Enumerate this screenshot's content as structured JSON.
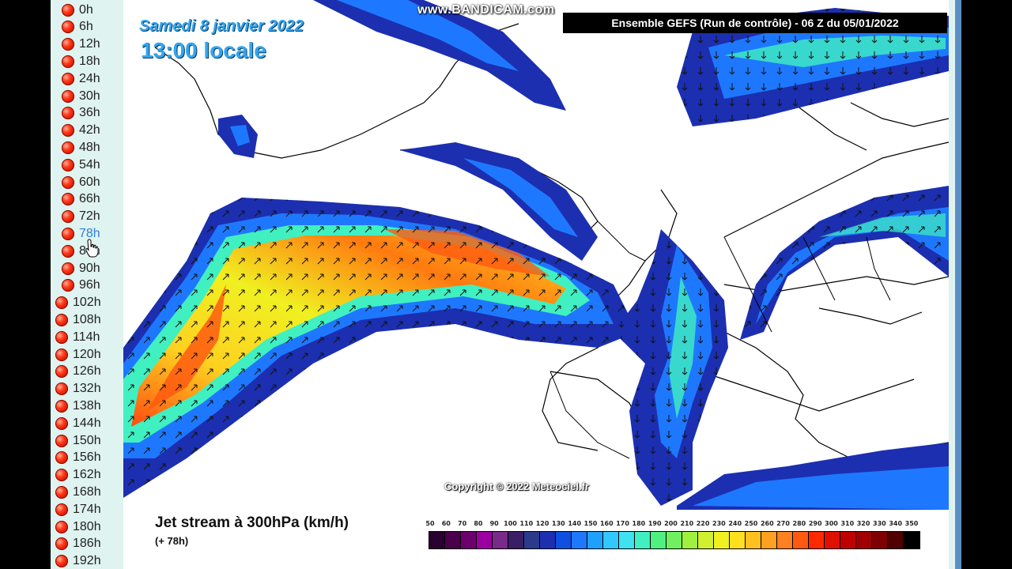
{
  "hours": [
    "0h",
    "6h",
    "12h",
    "18h",
    "24h",
    "30h",
    "36h",
    "42h",
    "48h",
    "54h",
    "60h",
    "66h",
    "72h",
    "78h",
    "84h",
    "90h",
    "96h",
    "102h",
    "108h",
    "114h",
    "120h",
    "126h",
    "132h",
    "138h",
    "144h",
    "150h",
    "156h",
    "162h",
    "168h",
    "174h",
    "180h",
    "186h",
    "192h"
  ],
  "active_hour": "78h",
  "header": {
    "date": "Samedi 8 janvier 2022",
    "time": "13:00 locale",
    "model": "Ensemble GEFS  (Run de contrôle)  -  06 Z du 05/01/2022",
    "watermark": "www.BANDICAM.com"
  },
  "copyright": "Copyright © 2022 Meteociel.fr",
  "footer": {
    "title": "Jet stream à 300hPa (km/h)",
    "subtitle": "(+ 78h)"
  },
  "scale": {
    "labels": [
      "50",
      "60",
      "70",
      "80",
      "90",
      "100",
      "110",
      "120",
      "130",
      "140",
      "150",
      "160",
      "170",
      "180",
      "190",
      "200",
      "210",
      "220",
      "230",
      "240",
      "250",
      "260",
      "270",
      "280",
      "290",
      "300",
      "310",
      "320",
      "330",
      "340",
      "350"
    ],
    "colors": [
      "#2a0030",
      "#4a004a",
      "#6e006e",
      "#9c00a0",
      "#7a2a88",
      "#3a1e66",
      "#2c3a8c",
      "#1c2fb0",
      "#1050e0",
      "#1e78ff",
      "#1ea0ff",
      "#30c8ff",
      "#3ee2f0",
      "#40f0c0",
      "#50f080",
      "#70f060",
      "#a0f040",
      "#d0f030",
      "#f0f020",
      "#ffe020",
      "#ffc020",
      "#ffa020",
      "#ff8020",
      "#ff5a10",
      "#ff2a00",
      "#e01000",
      "#c00000",
      "#a00000",
      "#800000",
      "#500000",
      "#000000"
    ]
  }
}
